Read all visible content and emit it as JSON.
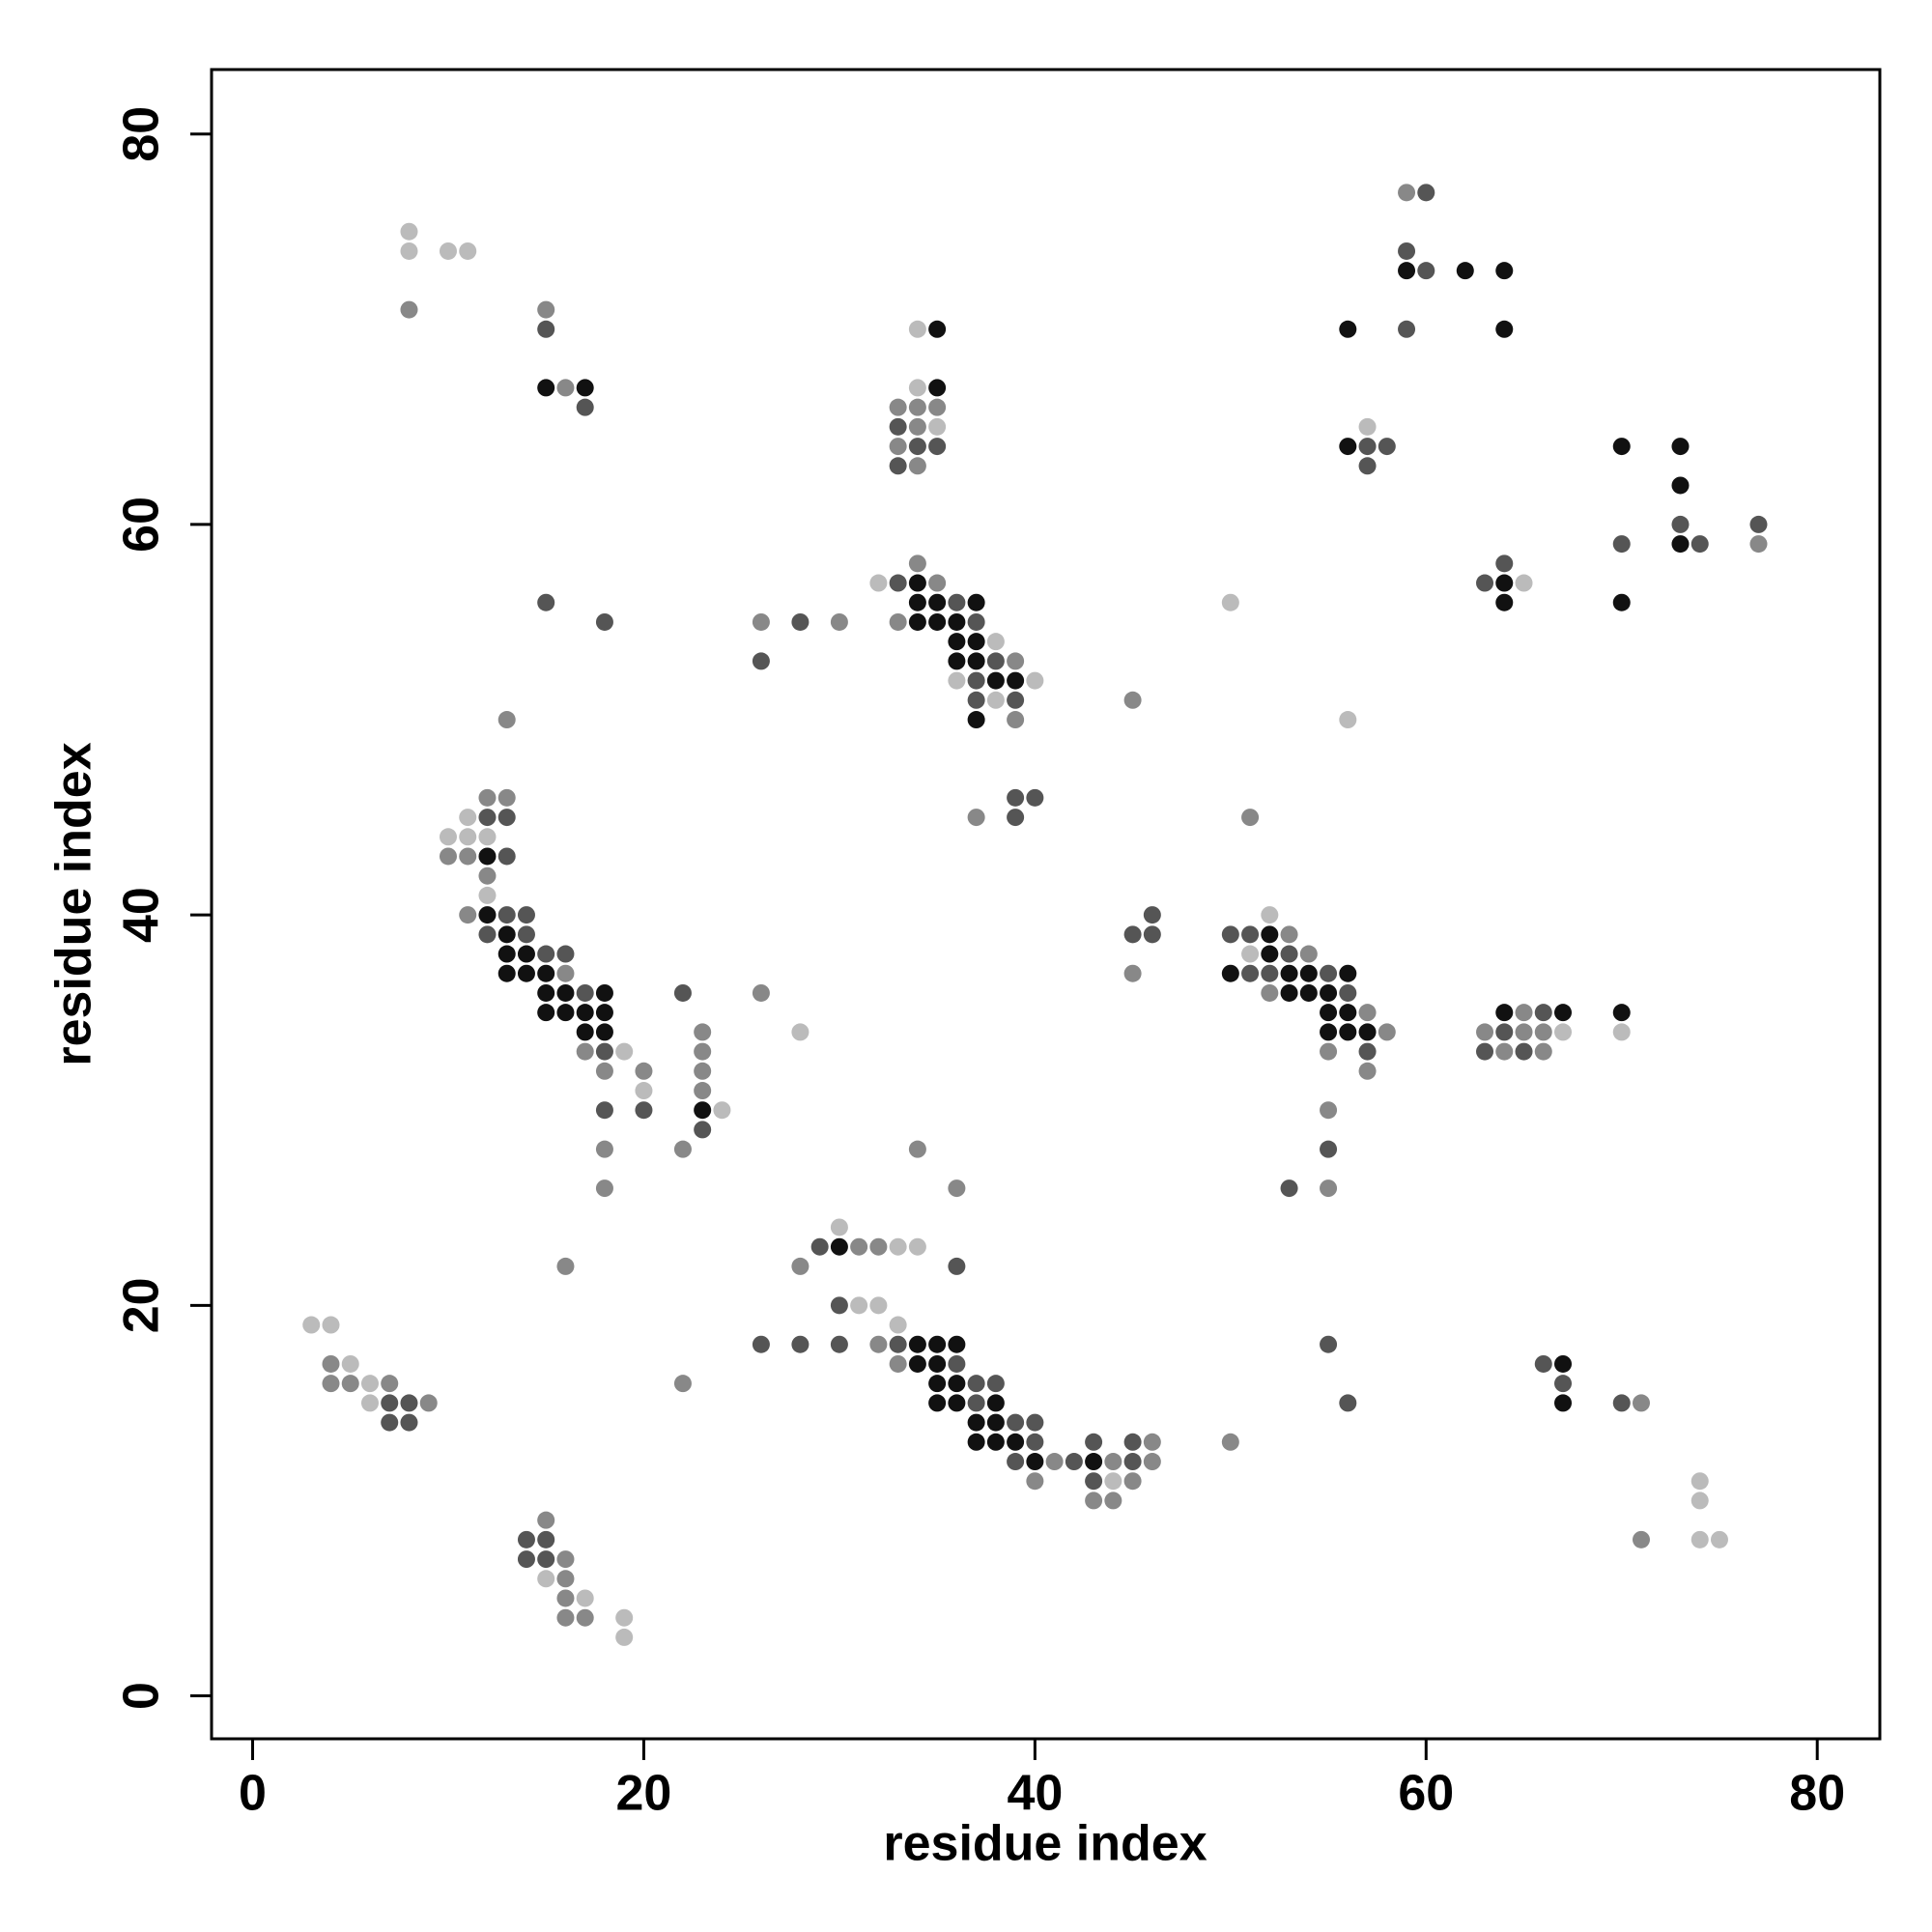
{
  "chart_data": {
    "type": "scatter",
    "xlabel": "residue index",
    "ylabel": "residue index",
    "xlim": [
      -2.1,
      83.2
    ],
    "ylim": [
      -2.2,
      83.3
    ],
    "xticks": [
      0,
      20,
      40,
      60,
      80
    ],
    "yticks": [
      0,
      20,
      40,
      60,
      80
    ],
    "series": [
      {
        "color": "#111111",
        "x": [
          30,
          34,
          35,
          36,
          34,
          35,
          35,
          36,
          35,
          36,
          38,
          37,
          38,
          37,
          38,
          39,
          40,
          43,
          67,
          67,
          12,
          12,
          13,
          13,
          14,
          13,
          14,
          15,
          15,
          16,
          18,
          15,
          16,
          17,
          18,
          17,
          18,
          23,
          15,
          17,
          35,
          35,
          34,
          34,
          35,
          37,
          34,
          35,
          36,
          36,
          37,
          36,
          37,
          38,
          39,
          37,
          52,
          52,
          50,
          53,
          54,
          56,
          53,
          54,
          55,
          55,
          56,
          55,
          56,
          57,
          64,
          67,
          70,
          59,
          62,
          64,
          56,
          64,
          56,
          70,
          73,
          73,
          73,
          70,
          64,
          64
        ],
        "y": [
          23,
          18,
          18,
          18,
          17,
          17,
          16,
          16,
          15,
          15,
          15,
          14,
          14,
          13,
          13,
          13,
          12,
          12,
          17,
          15,
          43,
          40,
          39,
          38,
          38,
          37,
          37,
          37,
          36,
          36,
          36,
          35,
          35,
          35,
          35,
          34,
          34,
          30,
          67,
          67,
          70,
          67,
          57,
          56,
          56,
          56,
          55,
          55,
          55,
          54,
          54,
          53,
          53,
          52,
          52,
          50,
          39,
          38,
          37,
          37,
          37,
          37,
          36,
          36,
          36,
          35,
          35,
          34,
          34,
          34,
          35,
          35,
          35,
          73,
          73,
          73,
          70,
          70,
          64,
          64,
          64,
          62,
          59,
          56,
          57,
          56
        ]
      },
      {
        "color": "#555555",
        "x": [
          7,
          8,
          7,
          8,
          14,
          15,
          14,
          15,
          29,
          36,
          30,
          26,
          28,
          30,
          33,
          36,
          37,
          38,
          37,
          39,
          40,
          40,
          39,
          42,
          45,
          43,
          45,
          43,
          55,
          56,
          66,
          67,
          70,
          12,
          13,
          13,
          13,
          14,
          12,
          14,
          15,
          16,
          17,
          18,
          18,
          20,
          22,
          23,
          15,
          18,
          15,
          17,
          33,
          34,
          35,
          33,
          33,
          36,
          37,
          38,
          37,
          37,
          39,
          26,
          28,
          39,
          40,
          39,
          45,
          46,
          46,
          50,
          51,
          53,
          51,
          52,
          55,
          56,
          57,
          55,
          53,
          64,
          66,
          63,
          65,
          60,
          59,
          60,
          59,
          57,
          58,
          57,
          73,
          77,
          70,
          74,
          64,
          63
        ],
        "y": [
          15,
          15,
          14,
          14,
          8,
          8,
          7,
          7,
          23,
          22,
          20,
          18,
          18,
          18,
          18,
          17,
          16,
          16,
          15,
          14,
          14,
          13,
          12,
          12,
          12,
          13,
          13,
          11,
          18,
          15,
          17,
          16,
          15,
          45,
          45,
          43,
          40,
          40,
          39,
          39,
          38,
          38,
          36,
          33,
          30,
          30,
          36,
          29,
          56,
          55,
          70,
          66,
          65,
          64,
          64,
          63,
          57,
          56,
          55,
          53,
          52,
          51,
          51,
          53,
          55,
          46,
          46,
          45,
          39,
          39,
          40,
          39,
          39,
          38,
          37,
          37,
          37,
          36,
          33,
          28,
          26,
          34,
          35,
          33,
          33,
          77,
          74,
          73,
          70,
          64,
          64,
          63,
          60,
          60,
          59,
          59,
          58,
          57
        ]
      },
      {
        "color": "#888888",
        "x": [
          4,
          4,
          5,
          7,
          9,
          15,
          16,
          16,
          16,
          16,
          17,
          22,
          31,
          32,
          28,
          32,
          33,
          41,
          44,
          46,
          46,
          40,
          45,
          43,
          44,
          50,
          71,
          71,
          13,
          12,
          13,
          10,
          11,
          12,
          11,
          16,
          17,
          18,
          20,
          18,
          18,
          23,
          23,
          23,
          23,
          22,
          26,
          16,
          8,
          15,
          16,
          33,
          34,
          35,
          34,
          33,
          34,
          34,
          35,
          33,
          39,
          39,
          26,
          30,
          37,
          34,
          36,
          45,
          45,
          51,
          53,
          54,
          52,
          57,
          58,
          55,
          57,
          55,
          55,
          63,
          65,
          66,
          65,
          64,
          66,
          59,
          77
        ],
        "y": [
          17,
          16,
          16,
          16,
          15,
          9,
          7,
          6,
          5,
          4,
          4,
          16,
          23,
          23,
          22,
          18,
          17,
          12,
          12,
          12,
          13,
          11,
          11,
          10,
          10,
          13,
          15,
          8,
          50,
          46,
          46,
          43,
          43,
          42,
          40,
          37,
          33,
          32,
          32,
          28,
          26,
          34,
          33,
          32,
          31,
          28,
          36,
          22,
          71,
          71,
          67,
          66,
          66,
          66,
          65,
          64,
          63,
          58,
          57,
          55,
          53,
          50,
          55,
          55,
          45,
          28,
          26,
          51,
          37,
          45,
          39,
          38,
          36,
          35,
          34,
          33,
          32,
          30,
          26,
          34,
          34,
          34,
          35,
          33,
          33,
          77,
          59
        ]
      },
      {
        "color": "#bbbbbb",
        "x": [
          3,
          4,
          5,
          6,
          6,
          15,
          17,
          19,
          19,
          30,
          33,
          34,
          31,
          32,
          33,
          44,
          74,
          74,
          74,
          75,
          11,
          10,
          11,
          12,
          12,
          19,
          20,
          24,
          28,
          8,
          8,
          10,
          11,
          34,
          34,
          35,
          32,
          38,
          36,
          40,
          38,
          50,
          56,
          52,
          51,
          67,
          70,
          57,
          65
        ],
        "y": [
          19,
          19,
          17,
          16,
          15,
          6,
          5,
          4,
          3,
          24,
          23,
          23,
          20,
          20,
          19,
          11,
          11,
          10,
          8,
          8,
          45,
          44,
          44,
          44,
          41,
          33,
          31,
          30,
          34,
          75,
          74,
          74,
          74,
          70,
          67,
          65,
          57,
          54,
          52,
          52,
          51,
          56,
          50,
          40,
          38,
          34,
          34,
          65,
          57
        ]
      }
    ]
  }
}
